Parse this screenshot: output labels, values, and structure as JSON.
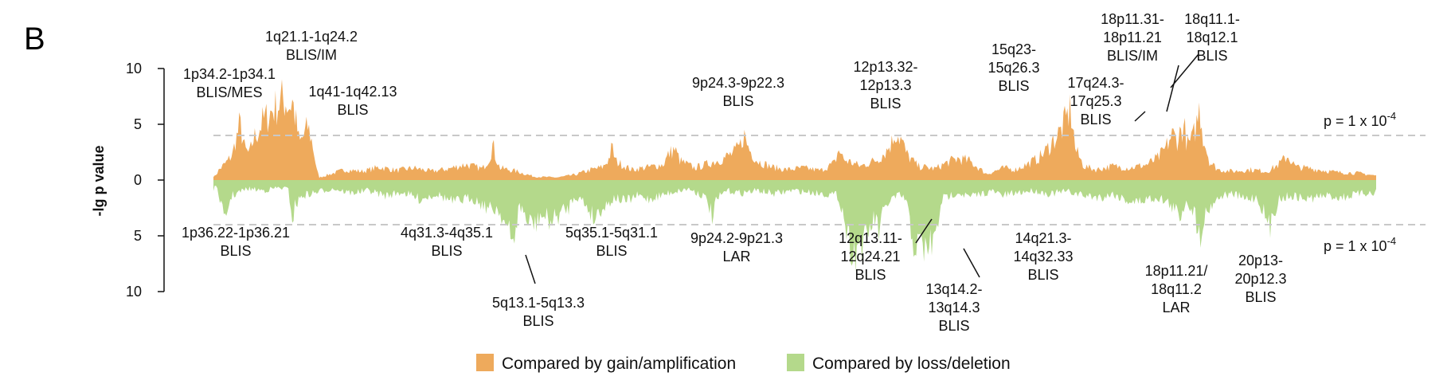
{
  "panel_label": "B",
  "chart_data": {
    "type": "area",
    "ylabel": "-lg p value",
    "yticks_top": [
      "10",
      "5",
      "0"
    ],
    "yticks_bottom": [
      "5",
      "10"
    ],
    "ylim": [
      -10,
      10
    ],
    "threshold": {
      "value": 4,
      "label_base": "p = 1 x 10",
      "label_exp": "-4"
    },
    "series": [
      {
        "name": "Compared by gain/amplification",
        "color": "#eeaa5c",
        "peaks": [
          [
            0.02,
            0.4
          ],
          [
            0.1,
            1.2
          ],
          [
            0.25,
            2.2
          ],
          [
            0.34,
            3.1
          ],
          [
            0.38,
            4.5
          ],
          [
            0.42,
            5.2
          ],
          [
            0.46,
            6.6
          ],
          [
            0.55,
            3.5
          ],
          [
            0.63,
            3.0
          ],
          [
            0.7,
            4.8
          ],
          [
            0.78,
            5.6
          ],
          [
            0.86,
            6.8
          ],
          [
            0.95,
            7.4
          ],
          [
            1.03,
            8.1
          ],
          [
            1.12,
            8.6
          ],
          [
            1.2,
            9.4
          ],
          [
            1.27,
            9.0
          ],
          [
            1.33,
            8.6
          ],
          [
            1.38,
            9.2
          ],
          [
            1.42,
            7.5
          ],
          [
            1.46,
            6.0
          ],
          [
            1.5,
            4.2
          ],
          [
            1.55,
            4.8
          ],
          [
            1.6,
            5.5
          ],
          [
            1.65,
            6.2
          ],
          [
            1.7,
            5.0
          ],
          [
            1.75,
            3.5
          ],
          [
            1.8,
            1.2
          ],
          [
            1.85,
            0.3
          ],
          [
            2.0,
            0.6
          ],
          [
            2.3,
            1.2
          ],
          [
            2.6,
            1.0
          ],
          [
            2.9,
            1.5
          ],
          [
            3.2,
            1.1
          ],
          [
            3.5,
            1.4
          ],
          [
            3.8,
            1.0
          ],
          [
            4.1,
            1.3
          ],
          [
            4.4,
            1.8
          ],
          [
            4.7,
            1.3
          ],
          [
            4.82,
            2.6
          ],
          [
            4.86,
            3.7
          ],
          [
            4.88,
            4.2
          ],
          [
            4.92,
            2.8
          ],
          [
            5.0,
            1.4
          ],
          [
            5.3,
            1.0
          ],
          [
            5.6,
            0.4
          ],
          [
            6.0,
            0.3
          ],
          [
            6.3,
            0.6
          ],
          [
            6.6,
            1.2
          ],
          [
            6.8,
            1.5
          ],
          [
            6.9,
            2.4
          ],
          [
            6.96,
            3.8
          ],
          [
            7.02,
            2.2
          ],
          [
            7.3,
            1.2
          ],
          [
            7.6,
            1.5
          ],
          [
            7.85,
            1.8
          ],
          [
            7.95,
            3.0
          ],
          [
            8.05,
            3.6
          ],
          [
            8.15,
            2.2
          ],
          [
            8.4,
            1.4
          ],
          [
            8.6,
            1.8
          ],
          [
            8.9,
            2.5
          ],
          [
            9.1,
            3.2
          ],
          [
            9.2,
            4.0
          ],
          [
            9.26,
            5.4
          ],
          [
            9.3,
            4.4
          ],
          [
            9.38,
            3.3
          ],
          [
            9.5,
            2.2
          ],
          [
            9.75,
            1.5
          ],
          [
            10.0,
            1.2
          ],
          [
            10.3,
            1.4
          ],
          [
            10.6,
            1.1
          ],
          [
            10.85,
            2.0
          ],
          [
            10.92,
            3.6
          ],
          [
            11.0,
            2.4
          ],
          [
            11.3,
            1.6
          ],
          [
            11.6,
            2.4
          ],
          [
            11.75,
            3.4
          ],
          [
            11.85,
            4.4
          ],
          [
            11.9,
            5.6
          ],
          [
            11.96,
            5.2
          ],
          [
            12.02,
            4.5
          ],
          [
            12.1,
            3.0
          ],
          [
            12.3,
            1.6
          ],
          [
            12.6,
            1.3
          ],
          [
            12.8,
            2.0
          ],
          [
            13.0,
            2.5
          ],
          [
            13.2,
            2.2
          ],
          [
            13.4,
            1.2
          ],
          [
            13.5,
            0.7
          ],
          [
            13.8,
            1.4
          ],
          [
            14.0,
            1.2
          ],
          [
            14.2,
            1.8
          ],
          [
            14.4,
            2.5
          ],
          [
            14.55,
            3.5
          ],
          [
            14.65,
            4.5
          ],
          [
            14.72,
            5.0
          ],
          [
            14.82,
            6.0
          ],
          [
            14.9,
            7.2
          ],
          [
            14.96,
            8.2
          ],
          [
            15.0,
            6.5
          ],
          [
            15.05,
            3.5
          ],
          [
            15.2,
            1.6
          ],
          [
            15.4,
            1.2
          ],
          [
            15.7,
            1.6
          ],
          [
            16.0,
            1.4
          ],
          [
            16.3,
            1.8
          ],
          [
            16.5,
            2.6
          ],
          [
            16.62,
            3.6
          ],
          [
            16.7,
            4.8
          ],
          [
            16.75,
            5.3
          ],
          [
            16.82,
            4.6
          ],
          [
            16.9,
            5.8
          ],
          [
            16.95,
            6.3
          ],
          [
            17.0,
            4.0
          ],
          [
            17.1,
            4.8
          ],
          [
            17.18,
            7.0
          ],
          [
            17.22,
            8.4
          ],
          [
            17.28,
            5.0
          ],
          [
            17.4,
            2.0
          ],
          [
            17.55,
            1.2
          ],
          [
            17.8,
            1.0
          ],
          [
            18.1,
            1.2
          ],
          [
            18.4,
            1.0
          ],
          [
            18.6,
            1.8
          ],
          [
            18.75,
            2.8
          ],
          [
            18.9,
            1.5
          ],
          [
            19.2,
            1.3
          ],
          [
            19.6,
            0.9
          ],
          [
            20.0,
            0.8
          ],
          [
            20.3,
            0.5
          ]
        ]
      },
      {
        "name": "Compared by loss/deletion",
        "color": "#b4d98b",
        "peaks": [
          [
            0.02,
            0.5
          ],
          [
            0.08,
            1.5
          ],
          [
            0.12,
            2.2
          ],
          [
            0.16,
            4.0
          ],
          [
            0.2,
            5.4
          ],
          [
            0.25,
            3.2
          ],
          [
            0.32,
            1.8
          ],
          [
            0.45,
            1.4
          ],
          [
            0.6,
            1.0
          ],
          [
            0.9,
            1.2
          ],
          [
            1.1,
            0.9
          ],
          [
            1.3,
            1.0
          ],
          [
            1.35,
            2.8
          ],
          [
            1.38,
            4.8
          ],
          [
            1.42,
            3.0
          ],
          [
            1.55,
            1.8
          ],
          [
            1.7,
            1.6
          ],
          [
            1.85,
            1.3
          ],
          [
            2.1,
            1.0
          ],
          [
            2.4,
            1.5
          ],
          [
            2.7,
            1.2
          ],
          [
            3.0,
            1.8
          ],
          [
            3.3,
            1.4
          ],
          [
            3.6,
            2.2
          ],
          [
            3.9,
            1.6
          ],
          [
            4.2,
            2.6
          ],
          [
            4.5,
            2.0
          ],
          [
            4.7,
            2.8
          ],
          [
            4.85,
            3.5
          ],
          [
            4.95,
            3.2
          ],
          [
            5.05,
            4.2
          ],
          [
            5.12,
            5.6
          ],
          [
            5.18,
            6.6
          ],
          [
            5.22,
            7.8
          ],
          [
            5.28,
            5.2
          ],
          [
            5.35,
            3.0
          ],
          [
            5.45,
            4.0
          ],
          [
            5.5,
            5.8
          ],
          [
            5.55,
            4.4
          ],
          [
            5.62,
            5.4
          ],
          [
            5.7,
            4.0
          ],
          [
            5.8,
            4.4
          ],
          [
            5.9,
            4.8
          ],
          [
            6.0,
            4.2
          ],
          [
            6.1,
            3.6
          ],
          [
            6.2,
            3.2
          ],
          [
            6.3,
            1.8
          ],
          [
            6.45,
            2.4
          ],
          [
            6.6,
            3.8
          ],
          [
            6.65,
            4.6
          ],
          [
            6.72,
            3.5
          ],
          [
            6.85,
            3.0
          ],
          [
            7.0,
            2.0
          ],
          [
            7.2,
            2.5
          ],
          [
            7.4,
            1.8
          ],
          [
            7.6,
            2.2
          ],
          [
            7.8,
            1.8
          ],
          [
            8.0,
            1.4
          ],
          [
            8.3,
            1.0
          ],
          [
            8.55,
            1.8
          ],
          [
            8.65,
            2.8
          ],
          [
            8.72,
            4.6
          ],
          [
            8.78,
            2.4
          ],
          [
            8.95,
            1.2
          ],
          [
            9.2,
            1.5
          ],
          [
            9.5,
            1.2
          ],
          [
            9.8,
            1.6
          ],
          [
            10.1,
            1.2
          ],
          [
            10.4,
            1.4
          ],
          [
            10.7,
            1.6
          ],
          [
            10.9,
            1.8
          ],
          [
            11.0,
            3.8
          ],
          [
            11.05,
            5.8
          ],
          [
            11.12,
            7.4
          ],
          [
            11.2,
            8.6
          ],
          [
            11.28,
            6.8
          ],
          [
            11.35,
            7.8
          ],
          [
            11.42,
            6.2
          ],
          [
            11.5,
            5.0
          ],
          [
            11.56,
            4.5
          ],
          [
            11.62,
            6.0
          ],
          [
            11.7,
            3.8
          ],
          [
            11.8,
            2.4
          ],
          [
            11.9,
            2.0
          ],
          [
            12.0,
            1.8
          ],
          [
            12.1,
            2.4
          ],
          [
            12.15,
            5.0
          ],
          [
            12.2,
            6.6
          ],
          [
            12.26,
            7.8
          ],
          [
            12.34,
            7.5
          ],
          [
            12.42,
            8.0
          ],
          [
            12.5,
            7.6
          ],
          [
            12.58,
            7.0
          ],
          [
            12.64,
            6.0
          ],
          [
            12.7,
            2.4
          ],
          [
            12.85,
            1.8
          ],
          [
            13.0,
            1.4
          ],
          [
            13.2,
            2.0
          ],
          [
            13.4,
            1.6
          ],
          [
            13.6,
            1.3
          ],
          [
            13.8,
            1.8
          ],
          [
            14.0,
            1.5
          ],
          [
            14.3,
            1.2
          ],
          [
            14.6,
            1.6
          ],
          [
            14.9,
            1.3
          ],
          [
            15.2,
            1.8
          ],
          [
            15.5,
            2.0
          ],
          [
            15.7,
            1.6
          ],
          [
            15.9,
            2.2
          ],
          [
            16.1,
            2.6
          ],
          [
            16.3,
            2.2
          ],
          [
            16.5,
            2.0
          ],
          [
            16.7,
            2.8
          ],
          [
            16.8,
            3.6
          ],
          [
            16.88,
            4.2
          ],
          [
            16.94,
            3.0
          ],
          [
            17.0,
            2.4
          ],
          [
            17.1,
            3.4
          ],
          [
            17.18,
            5.2
          ],
          [
            17.22,
            6.6
          ],
          [
            17.28,
            4.6
          ],
          [
            17.35,
            3.6
          ],
          [
            17.45,
            2.6
          ],
          [
            17.6,
            1.8
          ],
          [
            17.8,
            1.6
          ],
          [
            18.0,
            2.2
          ],
          [
            18.2,
            2.0
          ],
          [
            18.3,
            3.0
          ],
          [
            18.38,
            4.6
          ],
          [
            18.44,
            5.8
          ],
          [
            18.5,
            4.0
          ],
          [
            18.6,
            2.2
          ],
          [
            18.8,
            1.8
          ],
          [
            19.1,
            2.2
          ],
          [
            19.4,
            1.8
          ],
          [
            19.7,
            2.0
          ],
          [
            20.0,
            1.6
          ],
          [
            20.3,
            1.4
          ]
        ]
      }
    ]
  },
  "annotations": [
    {
      "id": "1p34",
      "lines": [
        "1p34.2-1p34.1",
        "BLIS/MES"
      ]
    },
    {
      "id": "1q21",
      "lines": [
        "1q21.1-1q24.2",
        "BLIS/IM"
      ]
    },
    {
      "id": "1q41",
      "lines": [
        "1q41-1q42.13",
        "BLIS"
      ]
    },
    {
      "id": "9p24a",
      "lines": [
        "9p24.3-9p22.3",
        "BLIS"
      ]
    },
    {
      "id": "12p13",
      "lines": [
        "12p13.32-",
        "12p13.3",
        "BLIS"
      ]
    },
    {
      "id": "15q23",
      "lines": [
        "15q23-",
        "15q26.3",
        "BLIS"
      ]
    },
    {
      "id": "18p11a",
      "lines": [
        "18p11.31-",
        "18p11.21",
        "BLIS/IM"
      ]
    },
    {
      "id": "18q11",
      "lines": [
        "18q11.1-",
        "18q12.1",
        "BLIS"
      ]
    },
    {
      "id": "17q24",
      "lines": [
        "17q24.3-",
        "17q25.3",
        "BLIS"
      ]
    },
    {
      "id": "1p36",
      "lines": [
        "1p36.22-1p36.21",
        "BLIS"
      ]
    },
    {
      "id": "4q31",
      "lines": [
        "4q31.3-4q35.1",
        "BLIS"
      ]
    },
    {
      "id": "5q13",
      "lines": [
        "5q13.1-5q13.3",
        "BLIS"
      ]
    },
    {
      "id": "5q35",
      "lines": [
        "5q35.1-5q31.1",
        "BLIS"
      ]
    },
    {
      "id": "9p24b",
      "lines": [
        "9p24.2-9p21.3",
        "LAR"
      ]
    },
    {
      "id": "12q13",
      "lines": [
        "12q13.11-",
        "12q24.21",
        "BLIS"
      ]
    },
    {
      "id": "13q14",
      "lines": [
        "13q14.2-",
        "13q14.3",
        "BLIS"
      ]
    },
    {
      "id": "14q21",
      "lines": [
        "14q21.3-",
        "14q32.33",
        "BLIS"
      ]
    },
    {
      "id": "18p11b",
      "lines": [
        "18p11.21/",
        "18q11.2",
        "LAR"
      ]
    },
    {
      "id": "20p13",
      "lines": [
        "20p13-",
        "20p12.3",
        "BLIS"
      ]
    }
  ],
  "legend": [
    {
      "label": "Compared by gain/amplification",
      "color": "#eeaa5c"
    },
    {
      "label": "Compared by loss/deletion",
      "color": "#b4d98b"
    }
  ]
}
